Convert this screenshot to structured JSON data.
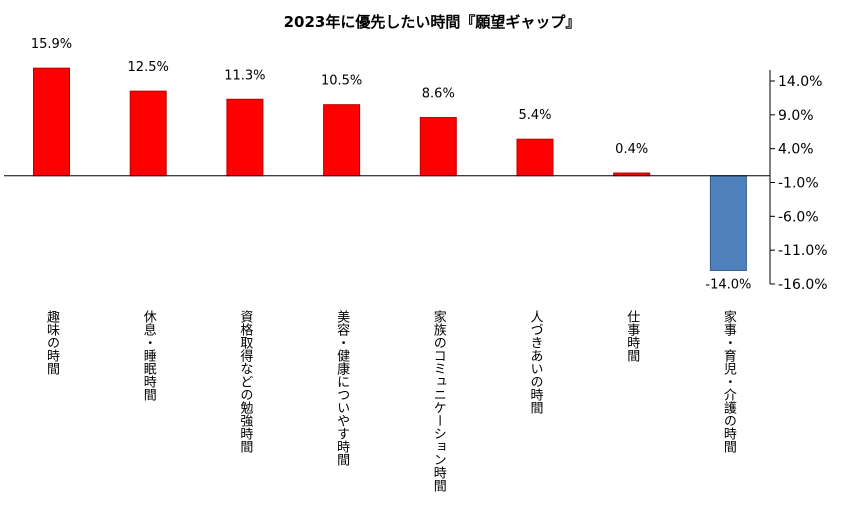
{
  "chart_data": {
    "type": "bar",
    "title": "2023年に優先したい時間『願望ギャップ』",
    "categories": [
      "趣味の時間",
      "休息・睡眠時間",
      "資格取得などの勉強時間",
      "美容・健康についやす時間",
      "家族のコミュニケーション時間",
      "人づきあいの時間",
      "仕事時間",
      "家事・育児・介護の時間"
    ],
    "values": [
      15.9,
      12.5,
      11.3,
      10.5,
      8.6,
      5.4,
      0.4,
      -14.0
    ],
    "value_labels": [
      "15.9%",
      "12.5%",
      "11.3%",
      "10.5%",
      "8.6%",
      "5.4%",
      "0.4%",
      "-14.0%"
    ],
    "ylim": [
      -16.0,
      14.0
    ],
    "yticks": [
      14.0,
      9.0,
      4.0,
      -1.0,
      -6.0,
      -11.0,
      -16.0
    ],
    "ytick_labels": [
      "14.0%",
      "9.0%",
      "4.0%",
      "-1.0%",
      "-6.0%",
      "-11.0%",
      "-16.0%"
    ],
    "y_axis_side": "right",
    "grid": false,
    "legend": "none",
    "colors": {
      "positive": "#ff0000",
      "negative": "#4f81bd"
    }
  }
}
